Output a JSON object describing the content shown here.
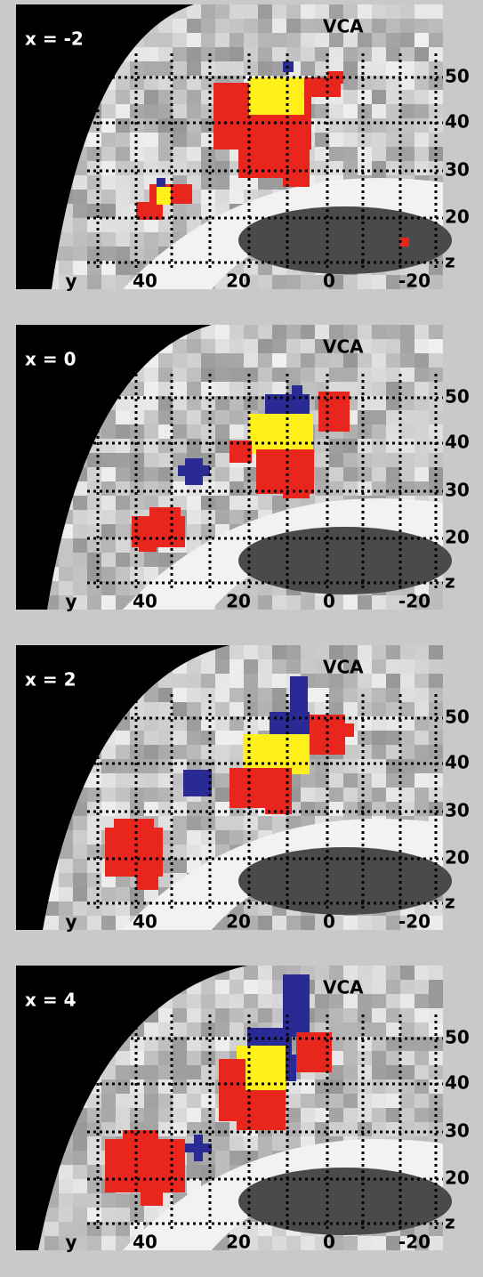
{
  "panels": [
    {
      "label": "x = -2",
      "title": "VCA",
      "right_labels": [
        "50",
        "40",
        "30",
        "20",
        "z"
      ],
      "bottom_labels": [
        "y",
        "40",
        "20",
        "0",
        "-20"
      ]
    },
    {
      "label": "x = 0",
      "title": "VCA",
      "right_labels": [
        "50",
        "40",
        "30",
        "20",
        "z"
      ],
      "bottom_labels": [
        "y",
        "40",
        "20",
        "0",
        "-20"
      ]
    },
    {
      "label": "x = 2",
      "title": "VCA",
      "right_labels": [
        "50",
        "40",
        "30",
        "20",
        "z"
      ],
      "bottom_labels": [
        "y",
        "40",
        "20",
        "0",
        "-20"
      ]
    },
    {
      "label": "x = 4",
      "title": "VCA",
      "right_labels": [
        "50",
        "40",
        "30",
        "20",
        "z"
      ],
      "bottom_labels": [
        "y",
        "40",
        "20",
        "0",
        "-20"
      ]
    }
  ]
}
